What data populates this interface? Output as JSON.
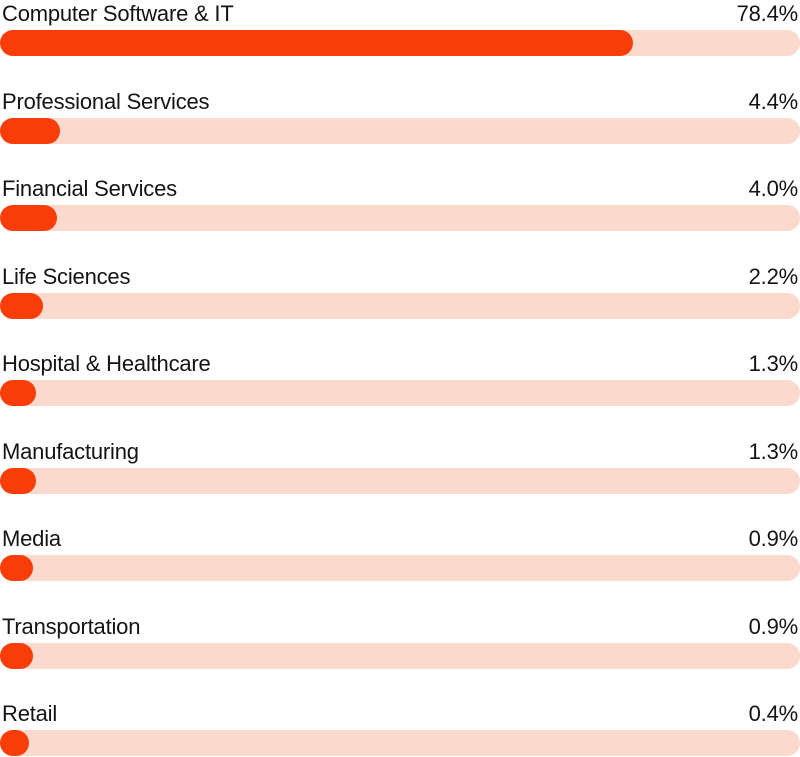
{
  "chart_data": {
    "type": "bar",
    "orientation": "horizontal",
    "title": "",
    "xlabel": "",
    "ylabel": "",
    "xlim": [
      0,
      100
    ],
    "grid": false,
    "legend": false,
    "categories": [
      "Computer Software & IT",
      "Professional Services",
      "Financial Services",
      "Life Sciences",
      "Hospital & Healthcare",
      "Manufacturing",
      "Media",
      "Transportation",
      "Retail"
    ],
    "values": [
      78.4,
      4.4,
      4.0,
      2.2,
      1.3,
      1.3,
      0.9,
      0.9,
      0.4
    ],
    "value_labels": [
      "78.4%",
      "4.4%",
      "4.0%",
      "2.2%",
      "1.3%",
      "1.3%",
      "0.9%",
      "0.9%",
      "0.4%"
    ]
  },
  "colors": {
    "bar_fill": "#F93D08",
    "bar_track": "#FBD9CC",
    "label_text": "#141414"
  },
  "rows": [
    {
      "label": "Computer Software & IT",
      "value": 78.4,
      "value_label": "78.4%"
    },
    {
      "label": "Professional Services",
      "value": 4.4,
      "value_label": "4.4%"
    },
    {
      "label": "Financial Services",
      "value": 4.0,
      "value_label": "4.0%"
    },
    {
      "label": "Life Sciences",
      "value": 2.2,
      "value_label": "2.2%"
    },
    {
      "label": "Hospital & Healthcare",
      "value": 1.3,
      "value_label": "1.3%"
    },
    {
      "label": "Manufacturing",
      "value": 1.3,
      "value_label": "1.3%"
    },
    {
      "label": "Media",
      "value": 0.9,
      "value_label": "0.9%"
    },
    {
      "label": "Transportation",
      "value": 0.9,
      "value_label": "0.9%"
    },
    {
      "label": "Retail",
      "value": 0.4,
      "value_label": "0.4%"
    }
  ]
}
